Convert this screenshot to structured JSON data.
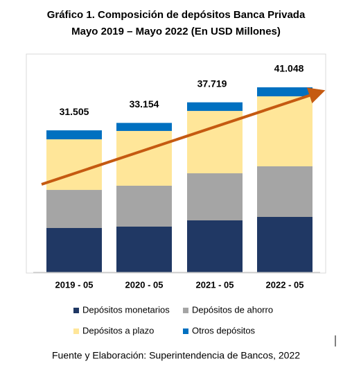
{
  "chart_data": {
    "type": "stacked-bar",
    "title": "Gráfico 1. Composición de depósitos Banca Privada",
    "subtitle": "Mayo 2019 – Mayo 2022 (En USD Millones)",
    "categories": [
      "2019 - 05",
      "2020 - 05",
      "2021 - 05",
      "2022 - 05"
    ],
    "series": [
      {
        "name": "Depósitos monetarios",
        "color": "#203864",
        "values": [
          9840,
          10150,
          11530,
          12300
        ]
      },
      {
        "name": "Depósitos de ahorro",
        "color": "#a5a5a5",
        "values": [
          8450,
          9070,
          10450,
          11220
        ]
      },
      {
        "name": "Depósitos a plazo",
        "color": "#ffe699",
        "values": [
          11220,
          12150,
          13830,
          15530
        ]
      },
      {
        "name": "Otros depósitos",
        "color": "#0070c0",
        "values": [
          1995,
          1784,
          1909,
          1998
        ]
      }
    ],
    "totals": [
      31505,
      33154,
      37719,
      41048
    ],
    "value_labels": [
      "31.505",
      "33.154",
      "37.719",
      "41.048"
    ],
    "source": "Fuente y Elaboración: Superintendencia de Bancos, 2022"
  }
}
